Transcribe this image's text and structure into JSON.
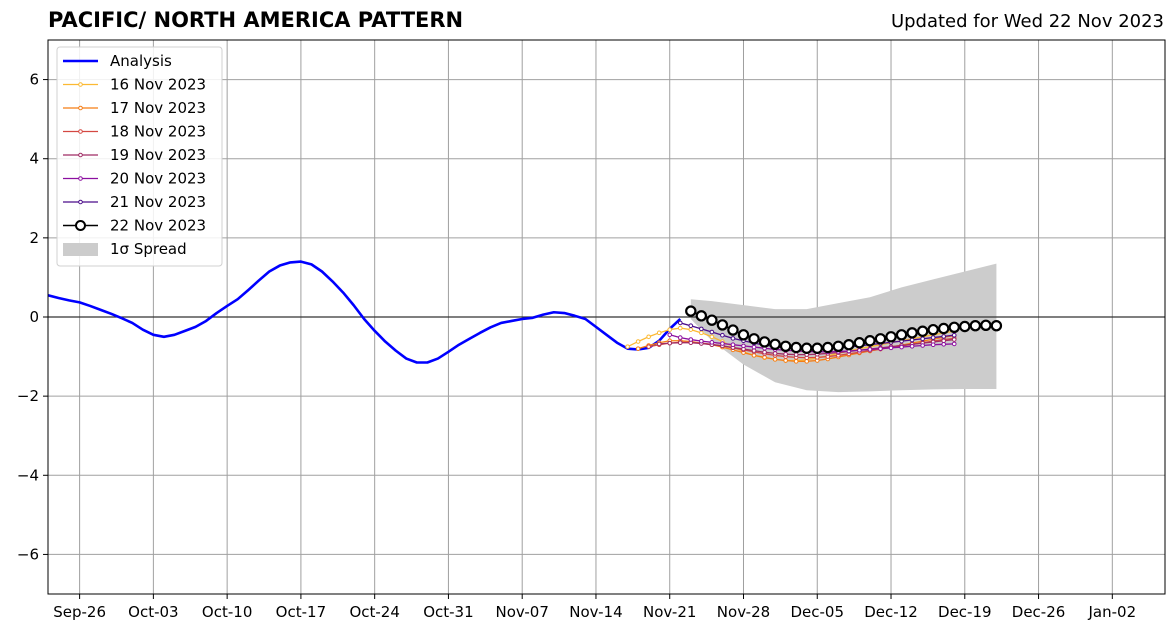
{
  "chart_data": {
    "type": "line",
    "title": "PACIFIC/ NORTH AMERICA PATTERN",
    "subtitle": "Updated for Wed 22 Nov 2023",
    "xlabel": "",
    "ylabel": "",
    "ylim": [
      -7,
      7
    ],
    "yticks": [
      -6,
      -4,
      -2,
      0,
      2,
      4,
      6
    ],
    "ytick_labels": [
      "−6",
      "−4",
      "−2",
      "0",
      "2",
      "4",
      "6"
    ],
    "xlim": [
      "2023-09-23",
      "2024-01-07"
    ],
    "xticks": [
      "2023-09-26",
      "2023-10-03",
      "2023-10-10",
      "2023-10-17",
      "2023-10-24",
      "2023-10-31",
      "2023-11-07",
      "2023-11-14",
      "2023-11-21",
      "2023-11-28",
      "2023-12-05",
      "2023-12-12",
      "2023-12-19",
      "2023-12-26",
      "2024-01-02"
    ],
    "xtick_labels": [
      "Sep-26",
      "Oct-03",
      "Oct-10",
      "Oct-17",
      "Oct-24",
      "Oct-31",
      "Nov-07",
      "Nov-14",
      "Nov-21",
      "Nov-28",
      "Dec-05",
      "Dec-12",
      "Dec-19",
      "Dec-26",
      "Jan-02"
    ],
    "grid": true,
    "legend": "top-left",
    "analysis": {
      "name": "Analysis",
      "color": "#0000ff",
      "start": "2023-09-23",
      "values": [
        0.55,
        0.48,
        0.42,
        0.37,
        0.28,
        0.18,
        0.08,
        -0.03,
        -0.15,
        -0.32,
        -0.45,
        -0.5,
        -0.45,
        -0.35,
        -0.25,
        -0.1,
        0.1,
        0.28,
        0.45,
        0.68,
        0.92,
        1.15,
        1.3,
        1.38,
        1.4,
        1.33,
        1.15,
        0.9,
        0.62,
        0.3,
        -0.05,
        -0.35,
        -0.62,
        -0.85,
        -1.05,
        -1.15,
        -1.15,
        -1.05,
        -0.88,
        -0.7,
        -0.55,
        -0.4,
        -0.26,
        -0.15,
        -0.1,
        -0.05,
        -0.02,
        0.06,
        0.12,
        0.1,
        0.03,
        -0.05,
        -0.25,
        -0.45,
        -0.65,
        -0.8,
        -0.82,
        -0.78,
        -0.6,
        -0.3,
        -0.05
      ]
    },
    "forecasts": [
      {
        "name": "16 Nov 2023",
        "color": "#fcb932",
        "start": "2023-11-17",
        "values": [
          -0.75,
          -0.62,
          -0.5,
          -0.4,
          -0.32,
          -0.28,
          -0.32,
          -0.4,
          -0.5,
          -0.62,
          -0.75,
          -0.88,
          -0.97,
          -1.03,
          -1.07,
          -1.1,
          -1.1,
          -1.08,
          -1.04,
          -0.98,
          -0.92,
          -0.86,
          -0.8,
          -0.75,
          -0.7,
          -0.65,
          -0.6,
          -0.55,
          -0.5,
          -0.45,
          -0.4,
          -0.36
        ]
      },
      {
        "name": "17 Nov 2023",
        "color": "#f57d15",
        "start": "2023-11-18",
        "values": [
          -0.8,
          -0.72,
          -0.65,
          -0.6,
          -0.6,
          -0.62,
          -0.66,
          -0.7,
          -0.76,
          -0.83,
          -0.9,
          -0.97,
          -1.02,
          -1.07,
          -1.1,
          -1.12,
          -1.12,
          -1.1,
          -1.06,
          -1.01,
          -0.96,
          -0.91,
          -0.86,
          -0.81,
          -0.76,
          -0.71,
          -0.66,
          -0.61,
          -0.56,
          -0.51,
          -0.47
        ]
      },
      {
        "name": "18 Nov 2023",
        "color": "#d44842",
        "start": "2023-11-19",
        "values": [
          -0.75,
          -0.7,
          -0.66,
          -0.64,
          -0.64,
          -0.66,
          -0.69,
          -0.73,
          -0.78,
          -0.83,
          -0.88,
          -0.93,
          -0.97,
          -1.0,
          -1.02,
          -1.03,
          -1.02,
          -1.0,
          -0.97,
          -0.93,
          -0.89,
          -0.85,
          -0.81,
          -0.77,
          -0.73,
          -0.69,
          -0.65,
          -0.61,
          -0.57,
          -0.54
        ]
      },
      {
        "name": "19 Nov 2023",
        "color": "#9f2a63",
        "start": "2023-11-20",
        "values": [
          -0.68,
          -0.66,
          -0.65,
          -0.65,
          -0.67,
          -0.7,
          -0.73,
          -0.77,
          -0.81,
          -0.85,
          -0.89,
          -0.92,
          -0.94,
          -0.95,
          -0.95,
          -0.94,
          -0.92,
          -0.9,
          -0.87,
          -0.84,
          -0.81,
          -0.78,
          -0.75,
          -0.72,
          -0.69,
          -0.66,
          -0.63,
          -0.6,
          -0.57
        ]
      },
      {
        "name": "20 Nov 2023",
        "color": "#8c0fa0",
        "start": "2023-11-21",
        "values": [
          -0.45,
          -0.52,
          -0.57,
          -0.61,
          -0.64,
          -0.67,
          -0.7,
          -0.73,
          -0.76,
          -0.79,
          -0.82,
          -0.84,
          -0.86,
          -0.87,
          -0.88,
          -0.88,
          -0.87,
          -0.86,
          -0.84,
          -0.82,
          -0.8,
          -0.78,
          -0.76,
          -0.74,
          -0.72,
          -0.7,
          -0.69,
          -0.68
        ]
      },
      {
        "name": "21 Nov 2023",
        "color": "#4b0c8a",
        "start": "2023-11-22",
        "values": [
          -0.15,
          -0.22,
          -0.3,
          -0.38,
          -0.46,
          -0.54,
          -0.6,
          -0.66,
          -0.71,
          -0.75,
          -0.78,
          -0.8,
          -0.81,
          -0.81,
          -0.8,
          -0.78,
          -0.76,
          -0.73,
          -0.7,
          -0.67,
          -0.64,
          -0.61,
          -0.58,
          -0.55,
          -0.52,
          -0.49,
          -0.46
        ]
      },
      {
        "name": "22 Nov 2023",
        "color": "#000000",
        "start": "2023-11-23",
        "values": [
          0.15,
          0.03,
          -0.08,
          -0.2,
          -0.33,
          -0.45,
          -0.55,
          -0.63,
          -0.69,
          -0.74,
          -0.77,
          -0.79,
          -0.79,
          -0.77,
          -0.74,
          -0.7,
          -0.65,
          -0.6,
          -0.55,
          -0.5,
          -0.45,
          -0.4,
          -0.36,
          -0.32,
          -0.29,
          -0.26,
          -0.24,
          -0.22,
          -0.21,
          -0.22
        ]
      }
    ],
    "spread": {
      "name": "1σ Spread",
      "color": "#cccccc",
      "dates": [
        "2023-11-23",
        "2023-11-25",
        "2023-11-28",
        "2023-12-01",
        "2023-12-04",
        "2023-12-07",
        "2023-12-10",
        "2023-12-13",
        "2023-12-16",
        "2023-12-19",
        "2023-12-22"
      ],
      "upper": [
        0.45,
        0.4,
        0.3,
        0.2,
        0.2,
        0.35,
        0.5,
        0.75,
        0.95,
        1.15,
        1.35
      ],
      "lower": [
        -0.05,
        -0.6,
        -1.2,
        -1.65,
        -1.85,
        -1.9,
        -1.88,
        -1.85,
        -1.83,
        -1.82,
        -1.82
      ]
    }
  }
}
